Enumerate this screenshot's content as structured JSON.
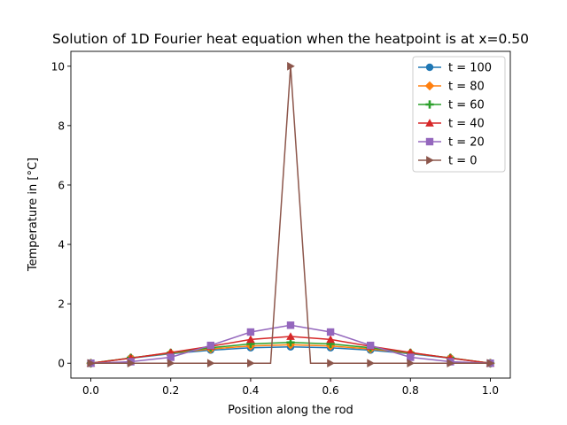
{
  "chart_data": {
    "type": "line",
    "title": "Solution of 1D Fourier heat equation when the heatpoint is at x=0.50",
    "xlabel": "Position along the rod",
    "ylabel": "Temperature in [°C]",
    "xlim": [
      -0.05,
      1.05
    ],
    "ylim": [
      -0.5,
      10.5
    ],
    "xticks": [
      "0.0",
      "0.2",
      "0.4",
      "0.6",
      "0.8",
      "1.0"
    ],
    "yticks": [
      "0",
      "2",
      "4",
      "6",
      "8",
      "10"
    ],
    "grid": false,
    "legend_position": "top-right",
    "series": [
      {
        "name": "t = 100",
        "color": "#1f77b4",
        "marker": "circle",
        "x": [
          0.0,
          0.1,
          0.2,
          0.3,
          0.4,
          0.5,
          0.6,
          0.7,
          0.8,
          0.9,
          1.0
        ],
        "y": [
          0.0,
          0.17,
          0.32,
          0.44,
          0.52,
          0.55,
          0.52,
          0.44,
          0.32,
          0.17,
          0.0
        ]
      },
      {
        "name": "t = 80",
        "color": "#ff7f0e",
        "marker": "diamond",
        "x": [
          0.0,
          0.1,
          0.2,
          0.3,
          0.4,
          0.5,
          0.6,
          0.7,
          0.8,
          0.9,
          1.0
        ],
        "y": [
          0.0,
          0.18,
          0.34,
          0.48,
          0.58,
          0.62,
          0.58,
          0.48,
          0.34,
          0.18,
          0.0
        ]
      },
      {
        "name": "t = 60",
        "color": "#2ca02c",
        "marker": "plus",
        "x": [
          0.0,
          0.1,
          0.2,
          0.3,
          0.4,
          0.5,
          0.6,
          0.7,
          0.8,
          0.9,
          1.0
        ],
        "y": [
          0.0,
          0.18,
          0.35,
          0.52,
          0.65,
          0.7,
          0.65,
          0.52,
          0.35,
          0.18,
          0.0
        ]
      },
      {
        "name": "t = 40",
        "color": "#d62728",
        "marker": "triangle-up",
        "x": [
          0.0,
          0.1,
          0.2,
          0.3,
          0.4,
          0.5,
          0.6,
          0.7,
          0.8,
          0.9,
          1.0
        ],
        "y": [
          0.0,
          0.17,
          0.36,
          0.57,
          0.8,
          0.9,
          0.8,
          0.57,
          0.36,
          0.17,
          0.0
        ]
      },
      {
        "name": "t = 20",
        "color": "#9467bd",
        "marker": "square",
        "x": [
          0.0,
          0.1,
          0.2,
          0.3,
          0.4,
          0.5,
          0.6,
          0.7,
          0.8,
          0.9,
          1.0
        ],
        "y": [
          0.0,
          0.05,
          0.2,
          0.6,
          1.05,
          1.28,
          1.05,
          0.6,
          0.2,
          0.05,
          0.0
        ]
      },
      {
        "name": "t = 0",
        "color": "#8c564b",
        "marker": "triangle-right",
        "x": [
          0.0,
          0.1,
          0.2,
          0.3,
          0.4,
          0.45,
          0.5,
          0.55,
          0.6,
          0.7,
          0.8,
          0.9,
          1.0
        ],
        "y": [
          0.0,
          0.0,
          0.0,
          0.0,
          0.0,
          0.0,
          10.0,
          0.0,
          0.0,
          0.0,
          0.0,
          0.0,
          0.0
        ],
        "marker_x": [
          0.0,
          0.1,
          0.2,
          0.3,
          0.4,
          0.5,
          0.6,
          0.7,
          0.8,
          0.9,
          1.0
        ]
      }
    ]
  }
}
